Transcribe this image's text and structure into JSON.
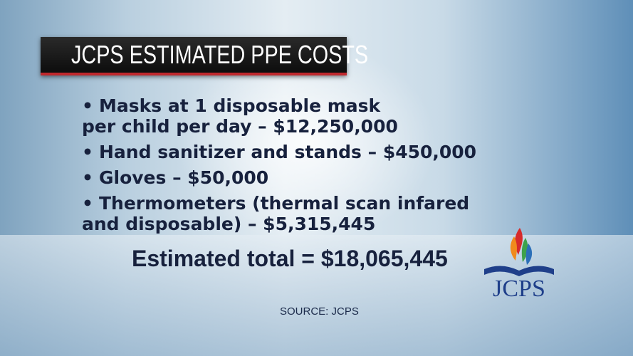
{
  "header": {
    "title": "JCPS ESTIMATED PPE COSTS"
  },
  "items": [
    {
      "lines": [
        "Masks at 1 disposable mask",
        "per child per day – $12,250,000"
      ]
    },
    {
      "lines": [
        "Hand sanitizer and stands – $450,000"
      ]
    },
    {
      "lines": [
        "Gloves – $50,000"
      ]
    },
    {
      "lines": [
        "Thermometers (thermal scan infared",
        "and disposable) – $5,315,445"
      ]
    }
  ],
  "total": "Estimated total = $18,065,445",
  "source": "SOURCE: JCPS",
  "logo": {
    "text": "JCPS"
  }
}
